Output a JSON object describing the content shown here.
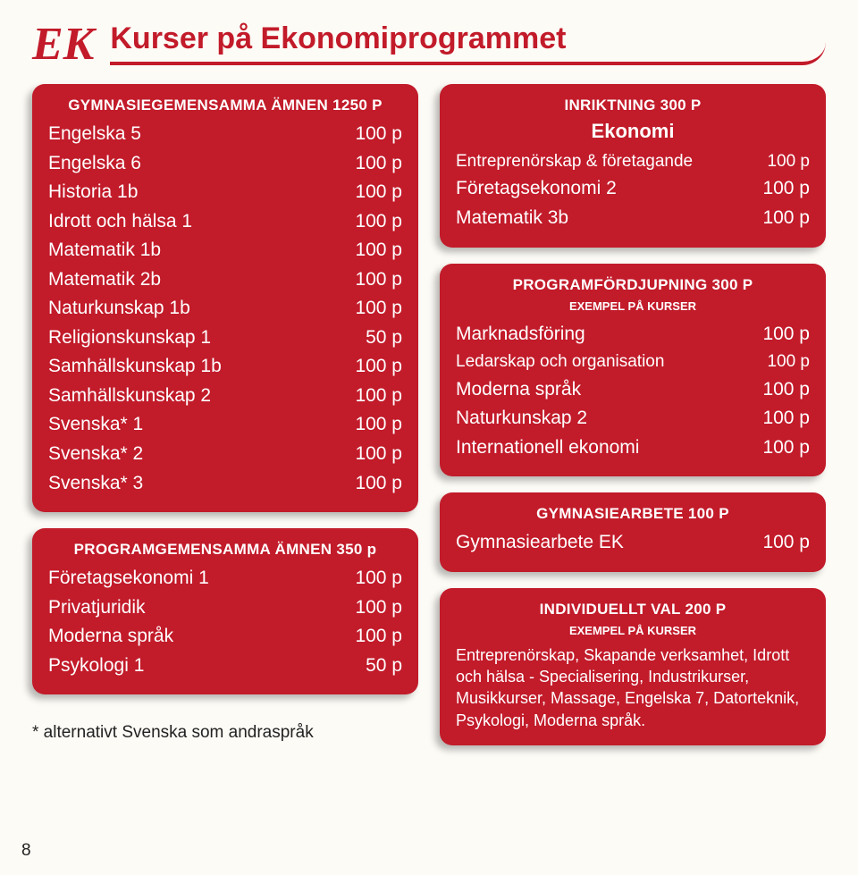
{
  "colors": {
    "accent": "#c21b2a",
    "card_bg": "#c21b2a",
    "page_bg": "#fdfbf6",
    "heading_text": "#c21b2a"
  },
  "header": {
    "logo": "EK",
    "title": "Kurser på Ekonomiprogrammet"
  },
  "left": {
    "gym": {
      "heading": "GYMNASIEGEMENSAMMA ÄMNEN 1250 P",
      "rows": [
        {
          "label": "Engelska 5",
          "value": "100 p"
        },
        {
          "label": "Engelska 6",
          "value": "100 p"
        },
        {
          "label": "Historia 1b",
          "value": "100 p"
        },
        {
          "label": "Idrott och hälsa 1",
          "value": "100 p"
        },
        {
          "label": "Matematik 1b",
          "value": "100 p"
        },
        {
          "label": "Matematik 2b",
          "value": "100 p"
        },
        {
          "label": "Naturkunskap 1b",
          "value": "100 p"
        },
        {
          "label": "Religionskunskap 1",
          "value": "50 p"
        },
        {
          "label": "Samhällskunskap 1b",
          "value": "100 p"
        },
        {
          "label": "Samhällskunskap 2",
          "value": "100 p"
        },
        {
          "label": "Svenska* 1",
          "value": "100 p"
        },
        {
          "label": "Svenska* 2",
          "value": "100 p"
        },
        {
          "label": "Svenska* 3",
          "value": "100 p"
        }
      ]
    },
    "prog": {
      "heading": "PROGRAMGEMENSAMMA ÄMNEN 350 p",
      "rows": [
        {
          "label": "Företagsekonomi 1",
          "value": "100 p"
        },
        {
          "label": "Privatjuridik",
          "value": "100 p"
        },
        {
          "label": "Moderna språk",
          "value": "100 p"
        },
        {
          "label": "Psykologi 1",
          "value": "50 p"
        }
      ]
    },
    "footnote": "* alternativt Svenska som andraspråk"
  },
  "right": {
    "inr": {
      "heading": "INRIKTNING 300 P",
      "subheading": "Ekonomi",
      "rows": [
        {
          "label": "Entreprenörskap & företagande",
          "value": "100 p",
          "small": true
        },
        {
          "label": "Företagsekonomi 2",
          "value": "100 p"
        },
        {
          "label": "Matematik 3b",
          "value": "100 p"
        }
      ]
    },
    "fordj": {
      "heading": "PROGRAMFÖRDJUPNING 300 P",
      "subnote": "EXEMPEL PÅ KURSER",
      "rows": [
        {
          "label": "Marknadsföring",
          "value": "100 p"
        },
        {
          "label": "Ledarskap och organisation",
          "value": "100 p",
          "small": true
        },
        {
          "label": "Moderna språk",
          "value": "100 p"
        },
        {
          "label": "Naturkunskap 2",
          "value": "100 p"
        },
        {
          "label": "Internationell ekonomi",
          "value": "100 p"
        }
      ]
    },
    "gymarb": {
      "heading": "GYMNASIEARBETE 100 P",
      "rows": [
        {
          "label": "Gymnasiearbete EK",
          "value": "100 p"
        }
      ]
    },
    "indval": {
      "heading": "INDIVIDUELLT VAL 200 P",
      "subnote": "EXEMPEL PÅ KURSER",
      "body": "Entreprenörskap, Skapande verksamhet, Idrott och hälsa - Specialisering, Industrikurser, Musikkurser, Massage, Engelska 7, Datorteknik, Psykologi, Moderna språk."
    }
  },
  "pagenum": "8"
}
